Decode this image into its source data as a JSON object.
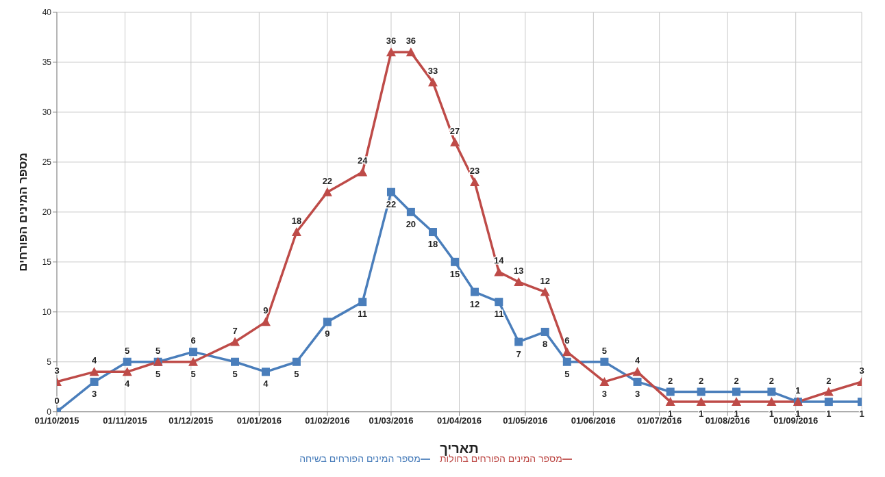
{
  "chart_data": {
    "type": "line",
    "xlabel": "תאריך",
    "ylabel": "מספר המינים הפורחים",
    "x": [
      "2015-10-01",
      "2015-10-18",
      "2015-11-02",
      "2015-11-16",
      "2015-12-02",
      "2015-12-21",
      "2016-01-04",
      "2016-01-18",
      "2016-02-01",
      "2016-02-17",
      "2016-03-01",
      "2016-03-10",
      "2016-03-20",
      "2016-03-30",
      "2016-04-08",
      "2016-04-19",
      "2016-04-28",
      "2016-05-10",
      "2016-05-20",
      "2016-06-06",
      "2016-06-21",
      "2016-07-06",
      "2016-07-20",
      "2016-08-05",
      "2016-08-21",
      "2016-09-02",
      "2016-09-16",
      "2016-10-01"
    ],
    "series": [
      {
        "name": "מספר המינים הפורחים בשיחה",
        "color": "#4a7ebb",
        "marker": "square",
        "values": [
          0,
          3,
          5,
          5,
          6,
          5,
          4,
          5,
          9,
          11,
          22,
          20,
          18,
          15,
          12,
          11,
          7,
          8,
          5,
          5,
          3,
          2,
          2,
          2,
          2,
          1,
          1,
          1
        ]
      },
      {
        "name": "מספר המינים הפורחים בחולות",
        "color": "#be4b48",
        "marker": "triangle",
        "values": [
          3,
          4,
          4,
          5,
          5,
          7,
          9,
          18,
          22,
          24,
          36,
          36,
          33,
          27,
          23,
          14,
          13,
          12,
          6,
          3,
          4,
          1,
          1,
          1,
          1,
          1,
          2,
          3
        ]
      }
    ],
    "xlim": [
      "2015-10-01",
      "2016-10-01"
    ],
    "xticks": [
      {
        "value": "2015-10-01",
        "label": "01/10/2015"
      },
      {
        "value": "2015-11-01",
        "label": "01/11/2015"
      },
      {
        "value": "2015-12-01",
        "label": "01/12/2015"
      },
      {
        "value": "2016-01-01",
        "label": "01/01/2016"
      },
      {
        "value": "2016-02-01",
        "label": "01/02/2016"
      },
      {
        "value": "2016-03-01",
        "label": "01/03/2016"
      },
      {
        "value": "2016-04-01",
        "label": "01/04/2016"
      },
      {
        "value": "2016-05-01",
        "label": "01/05/2016"
      },
      {
        "value": "2016-06-01",
        "label": "01/06/2016"
      },
      {
        "value": "2016-07-01",
        "label": "01/07/2016"
      },
      {
        "value": "2016-08-01",
        "label": "01/08/2016"
      },
      {
        "value": "2016-09-01",
        "label": "01/09/2016"
      }
    ],
    "ylim": [
      0,
      40
    ],
    "yticks": [
      0,
      5,
      10,
      15,
      20,
      25,
      30,
      35,
      40
    ],
    "grid": true,
    "legend": "bottom",
    "data_labels": true,
    "line_style": "solid"
  }
}
